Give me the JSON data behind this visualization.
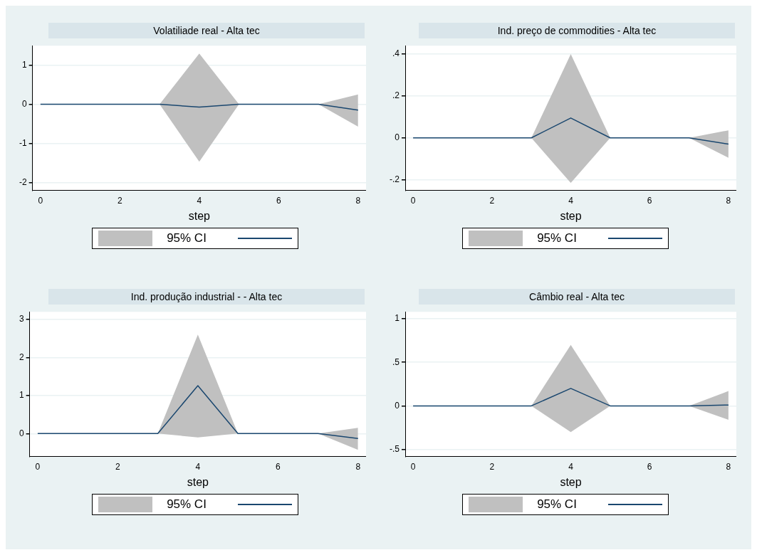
{
  "chart_data": [
    {
      "type": "line",
      "title": "Volatiliade real - Alta tec",
      "xlabel": "step",
      "x": [
        0,
        1,
        2,
        3,
        4,
        5,
        6,
        7,
        8
      ],
      "xlim": [
        -0.2,
        8.2
      ],
      "xticks": [
        0,
        2,
        4,
        6,
        8
      ],
      "ylim": [
        -2.2,
        1.5
      ],
      "yticks": [
        -2,
        -1,
        0,
        1
      ],
      "grid": "y",
      "legend": "bottom",
      "series": [
        {
          "name": "95% CI",
          "color": "#1a476f",
          "values": [
            0,
            0,
            0,
            0,
            -0.07,
            0,
            0,
            0,
            -0.15
          ],
          "lower": [
            0,
            0,
            0,
            0,
            -1.47,
            0,
            0,
            0,
            -0.57
          ],
          "upper": [
            0,
            0,
            0,
            0,
            1.3,
            0,
            0,
            0,
            0.25
          ]
        }
      ]
    },
    {
      "type": "line",
      "title": "Ind. preço de commodities - Alta tec",
      "xlabel": "step",
      "x": [
        0,
        1,
        2,
        3,
        4,
        5,
        6,
        7,
        8
      ],
      "xlim": [
        -0.2,
        8.2
      ],
      "xticks": [
        0,
        2,
        4,
        6,
        8
      ],
      "ylim": [
        -0.25,
        0.44
      ],
      "yticks": [
        {
          "value": -0.2,
          "label": "-.2"
        },
        0,
        {
          "value": 0.2,
          "label": ".2"
        },
        {
          "value": 0.4,
          "label": ".4"
        }
      ],
      "grid": "y",
      "legend": "bottom",
      "series": [
        {
          "name": "95% CI",
          "color": "#1a476f",
          "values": [
            0,
            0,
            0,
            0,
            0.095,
            0,
            0,
            0,
            -0.03
          ],
          "lower": [
            0,
            0,
            0,
            0,
            -0.215,
            0,
            0,
            0,
            -0.095
          ],
          "upper": [
            0,
            0,
            0,
            0,
            0.4,
            0,
            0,
            0,
            0.036
          ]
        }
      ]
    },
    {
      "type": "line",
      "title": "Ind. produção industrial - - Alta tec",
      "xlabel": "step",
      "x": [
        0,
        1,
        2,
        3,
        4,
        5,
        6,
        7,
        8
      ],
      "xlim": [
        -0.2,
        8.2
      ],
      "xticks": [
        0,
        2,
        4,
        6,
        8
      ],
      "ylim": [
        -0.6,
        3.2
      ],
      "yticks": [
        0,
        1,
        2,
        3
      ],
      "grid": "y",
      "legend": "bottom",
      "series": [
        {
          "name": "95% CI",
          "color": "#1a476f",
          "values": [
            0,
            0,
            0,
            0,
            1.26,
            0,
            0,
            0,
            -0.13
          ],
          "lower": [
            0,
            0,
            0,
            0,
            -0.1,
            0,
            0,
            0,
            -0.43
          ],
          "upper": [
            0,
            0,
            0,
            0,
            2.6,
            0,
            0,
            0,
            0.15
          ]
        }
      ]
    },
    {
      "type": "line",
      "title": "Câmbio real - Alta tec",
      "xlabel": "step",
      "x": [
        0,
        1,
        2,
        3,
        4,
        5,
        6,
        7,
        8
      ],
      "xlim": [
        -0.2,
        8.2
      ],
      "xticks": [
        0,
        2,
        4,
        6,
        8
      ],
      "ylim": [
        -0.58,
        1.08
      ],
      "yticks": [
        {
          "value": -0.5,
          "label": "-.5"
        },
        0,
        {
          "value": 0.5,
          "label": ".5"
        },
        1
      ],
      "grid": "y",
      "legend": "bottom",
      "series": [
        {
          "name": "95% CI",
          "color": "#1a476f",
          "values": [
            0,
            0,
            0,
            0,
            0.2,
            0,
            0,
            0,
            0.01
          ],
          "lower": [
            0,
            0,
            0,
            0,
            -0.3,
            0,
            0,
            0,
            -0.16
          ],
          "upper": [
            0,
            0,
            0,
            0,
            0.7,
            0,
            0,
            0,
            0.17
          ]
        }
      ]
    }
  ]
}
